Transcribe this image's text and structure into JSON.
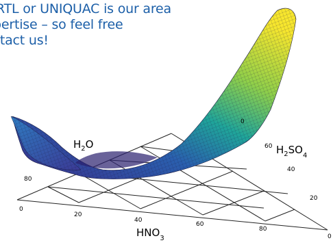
{
  "headline": {
    "line1": "RTL or UNIQUAC is our area",
    "line2": "pertise –  so feel free",
    "line3": "ntact us!"
  },
  "ternary": {
    "labels": {
      "h2o": "H",
      "h2o_sub": "2",
      "h2o_tail": "O",
      "h2so4": "H",
      "h2so4_sub": "2",
      "h2so4_mid": "SO",
      "h2so4_sub2": "4",
      "hno3": "HNO",
      "hno3_sub": "3"
    },
    "ticks": {
      "bottom": [
        "0",
        "20",
        "40",
        "60",
        "80",
        "0"
      ],
      "left": [
        "80"
      ],
      "right": [
        "0",
        "60",
        "40",
        "20"
      ]
    }
  },
  "colors": {
    "headline": "#1c5fa8",
    "surface_low": "#3b2f8f",
    "surface_mid": "#21a89a",
    "surface_high": "#f5e52c"
  }
}
